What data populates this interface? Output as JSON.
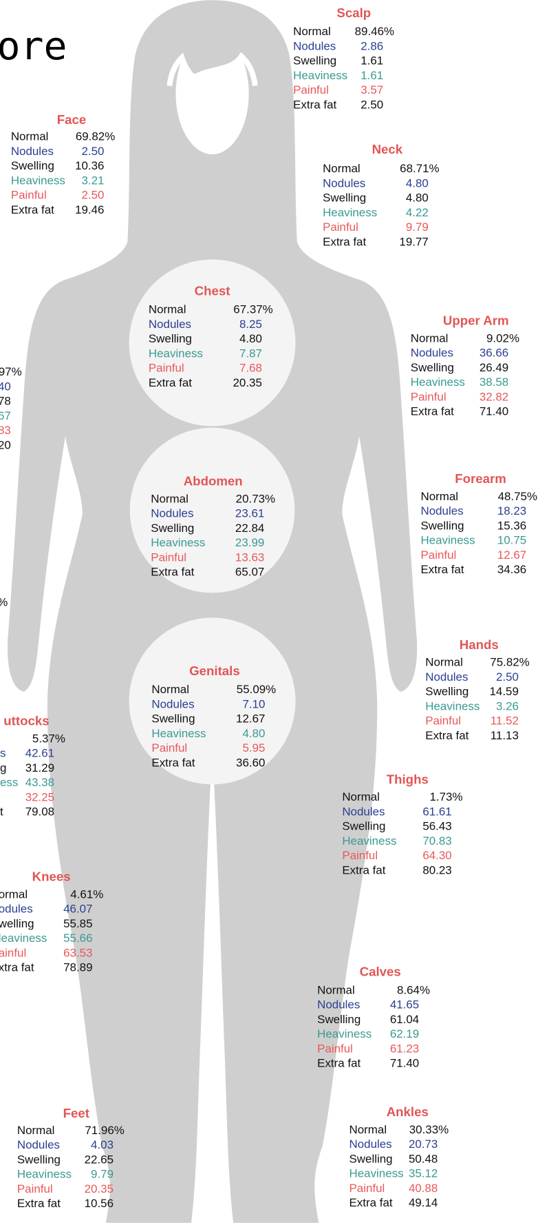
{
  "heading": "ore",
  "regions": [
    {
      "title": "Scalp",
      "rows": [
        {
          "label": "Normal",
          "value": "89.46%"
        },
        {
          "label": "Nodules",
          "value": "2.86"
        },
        {
          "label": "Swelling",
          "value": "1.61"
        },
        {
          "label": "Heaviness",
          "value": "1.61"
        },
        {
          "label": "Painful",
          "value": "3.57"
        },
        {
          "label": "Extra fat",
          "value": "2.50"
        }
      ]
    },
    {
      "title": "Face",
      "rows": [
        {
          "label": "Normal",
          "value": "69.82%"
        },
        {
          "label": "Nodules",
          "value": "2.50"
        },
        {
          "label": "Swelling",
          "value": "10.36"
        },
        {
          "label": "Heaviness",
          "value": "3.21"
        },
        {
          "label": "Painful",
          "value": "2.50"
        },
        {
          "label": "Extra fat",
          "value": "19.46"
        }
      ]
    },
    {
      "title": "Neck",
      "rows": [
        {
          "label": "Normal",
          "value": "68.71%"
        },
        {
          "label": "Nodules",
          "value": "4.80"
        },
        {
          "label": "Swelling",
          "value": "4.80"
        },
        {
          "label": "Heaviness",
          "value": "4.22"
        },
        {
          "label": "Painful",
          "value": "9.79"
        },
        {
          "label": "Extra fat",
          "value": "19.77"
        }
      ]
    },
    {
      "title": "Chest",
      "rows": [
        {
          "label": "Normal",
          "value": "67.37%"
        },
        {
          "label": "Nodules",
          "value": "8.25"
        },
        {
          "label": "Swelling",
          "value": "4.80"
        },
        {
          "label": "Heaviness",
          "value": "7.87"
        },
        {
          "label": "Painful",
          "value": "7.68"
        },
        {
          "label": "Extra fat",
          "value": "20.35"
        }
      ]
    },
    {
      "title": "Upper Arm",
      "rows": [
        {
          "label": "Normal",
          "value": "9.02%"
        },
        {
          "label": "Nodules",
          "value": "36.66"
        },
        {
          "label": "Swelling",
          "value": "26.49"
        },
        {
          "label": "Heaviness",
          "value": "38.58"
        },
        {
          "label": "Painful",
          "value": "32.82"
        },
        {
          "label": "Extra fat",
          "value": "71.40"
        }
      ]
    },
    {
      "title": "Abdomen",
      "rows": [
        {
          "label": "Normal",
          "value": "20.73%"
        },
        {
          "label": "Nodules",
          "value": "23.61"
        },
        {
          "label": "Swelling",
          "value": "22.84"
        },
        {
          "label": "Heaviness",
          "value": "23.99"
        },
        {
          "label": "Painful",
          "value": "13.63"
        },
        {
          "label": "Extra fat",
          "value": "65.07"
        }
      ]
    },
    {
      "title": "Forearm",
      "rows": [
        {
          "label": "Normal",
          "value": "48.75%"
        },
        {
          "label": "Nodules",
          "value": "18.23"
        },
        {
          "label": "Swelling",
          "value": "15.36"
        },
        {
          "label": "Heaviness",
          "value": "10.75"
        },
        {
          "label": "Painful",
          "value": "12.67"
        },
        {
          "label": "Extra fat",
          "value": "34.36"
        }
      ]
    },
    {
      "title": "Hands",
      "rows": [
        {
          "label": "Normal",
          "value": "75.82%"
        },
        {
          "label": "Nodules",
          "value": "2.50"
        },
        {
          "label": "Swelling",
          "value": "14.59"
        },
        {
          "label": "Heaviness",
          "value": "3.26"
        },
        {
          "label": "Painful",
          "value": "11.52"
        },
        {
          "label": "Extra fat",
          "value": "11.13"
        }
      ]
    },
    {
      "title": "Genitals",
      "rows": [
        {
          "label": "Normal",
          "value": "55.09%"
        },
        {
          "label": "Nodules",
          "value": "7.10"
        },
        {
          "label": "Swelling",
          "value": "12.67"
        },
        {
          "label": "Heaviness",
          "value": "4.80"
        },
        {
          "label": "Painful",
          "value": "5.95"
        },
        {
          "label": "Extra fat",
          "value": "36.60"
        }
      ]
    },
    {
      "title": "Thighs",
      "rows": [
        {
          "label": "Normal",
          "value": "1.73%"
        },
        {
          "label": "Nodules",
          "value": "61.61"
        },
        {
          "label": "Swelling",
          "value": "56.43"
        },
        {
          "label": "Heaviness",
          "value": "70.83"
        },
        {
          "label": "Painful",
          "value": "64.30"
        },
        {
          "label": "Extra fat",
          "value": "80.23"
        }
      ]
    },
    {
      "title": "uttocks",
      "rows": [
        {
          "value": "5.37%"
        },
        {
          "label": "s",
          "value": "42.61"
        },
        {
          "label": "g",
          "value": "31.29"
        },
        {
          "label": "ess",
          "value": "43.38"
        },
        {
          "value": "32.25"
        },
        {
          "label": "t",
          "value": "79.08"
        }
      ]
    },
    {
      "title": "Knees",
      "rows": [
        {
          "label": "ormal",
          "value": "4.61%"
        },
        {
          "label": "odules",
          "value": "46.07"
        },
        {
          "label": "welling",
          "value": "55.85"
        },
        {
          "label": "leaviness",
          "value": "55.66"
        },
        {
          "label": "ainful",
          "value": "63.53"
        },
        {
          "label": "xtra fat",
          "value": "78.89"
        }
      ]
    },
    {
      "title": "Calves",
      "rows": [
        {
          "label": "Normal",
          "value": "8.64%"
        },
        {
          "label": "Nodules",
          "value": "41.65"
        },
        {
          "label": "Swelling",
          "value": "61.04"
        },
        {
          "label": "Heaviness",
          "value": "62.19"
        },
        {
          "label": "Painful",
          "value": "61.23"
        },
        {
          "label": "Extra fat",
          "value": "71.40"
        }
      ]
    },
    {
      "title": "Feet",
      "rows": [
        {
          "label": "Normal",
          "value": "71.96%"
        },
        {
          "label": "Nodules",
          "value": "4.03"
        },
        {
          "label": "Swelling",
          "value": "22.65"
        },
        {
          "label": "Heaviness",
          "value": "9.79"
        },
        {
          "label": "Painful",
          "value": "20.35"
        },
        {
          "label": "Extra fat",
          "value": "10.56"
        }
      ]
    },
    {
      "title": "Ankles",
      "rows": [
        {
          "label": "Normal",
          "value": "30.33%"
        },
        {
          "label": "Nodules",
          "value": "20.73"
        },
        {
          "label": "Swelling",
          "value": "50.48"
        },
        {
          "label": "Heaviness",
          "value": "35.12"
        },
        {
          "label": "Painful",
          "value": "40.88"
        },
        {
          "label": "Extra fat",
          "value": "49.14"
        }
      ]
    },
    {
      "rows": [
        {
          "value": "97%"
        },
        {
          "value": "40"
        },
        {
          "value": "78"
        },
        {
          "value": "67"
        },
        {
          "value": "83"
        },
        {
          "value": "20"
        }
      ]
    },
    {
      "rows": [
        {
          "value": "%"
        }
      ]
    }
  ]
}
